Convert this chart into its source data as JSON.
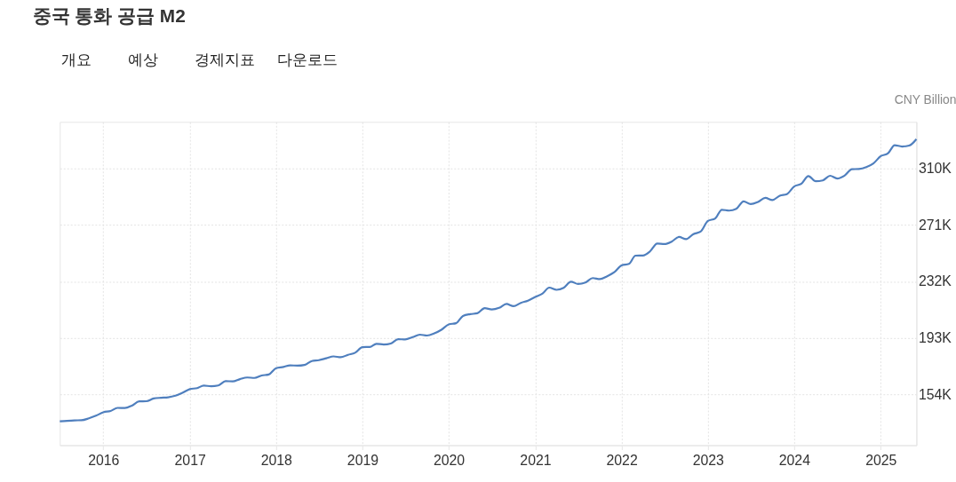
{
  "chart_data": {
    "type": "line",
    "title": "중국 통화 공급 M2",
    "ylabel": "CNY Billion",
    "annotations": [
      "개요",
      "예상",
      "경제지표",
      "다운로드"
    ],
    "x": [
      "2015-07",
      "2015-08",
      "2015-09",
      "2015-10",
      "2015-11",
      "2015-12",
      "2016-01",
      "2016-02",
      "2016-03",
      "2016-04",
      "2016-05",
      "2016-06",
      "2016-07",
      "2016-08",
      "2016-09",
      "2016-10",
      "2016-11",
      "2016-12",
      "2017-01",
      "2017-02",
      "2017-03",
      "2017-04",
      "2017-05",
      "2017-06",
      "2017-07",
      "2017-08",
      "2017-09",
      "2017-10",
      "2017-11",
      "2017-12",
      "2018-01",
      "2018-02",
      "2018-03",
      "2018-04",
      "2018-05",
      "2018-06",
      "2018-07",
      "2018-08",
      "2018-09",
      "2018-10",
      "2018-11",
      "2018-12",
      "2019-01",
      "2019-02",
      "2019-03",
      "2019-04",
      "2019-05",
      "2019-06",
      "2019-07",
      "2019-08",
      "2019-09",
      "2019-10",
      "2019-11",
      "2019-12",
      "2020-01",
      "2020-02",
      "2020-03",
      "2020-04",
      "2020-05",
      "2020-06",
      "2020-07",
      "2020-08",
      "2020-09",
      "2020-10",
      "2020-11",
      "2020-12",
      "2021-01",
      "2021-02",
      "2021-03",
      "2021-04",
      "2021-05",
      "2021-06",
      "2021-07",
      "2021-08",
      "2021-09",
      "2021-10",
      "2021-11",
      "2021-12",
      "2022-01",
      "2022-02",
      "2022-03",
      "2022-04",
      "2022-05",
      "2022-06",
      "2022-07",
      "2022-08",
      "2022-09",
      "2022-10",
      "2022-11",
      "2022-12",
      "2023-01",
      "2023-02",
      "2023-03",
      "2023-04",
      "2023-05",
      "2023-06",
      "2023-07",
      "2023-08",
      "2023-09",
      "2023-10",
      "2023-11",
      "2023-12",
      "2024-01",
      "2024-02",
      "2024-03",
      "2024-04",
      "2024-05",
      "2024-06",
      "2024-07",
      "2024-08",
      "2024-09",
      "2024-10",
      "2024-11",
      "2024-12",
      "2025-01",
      "2025-02",
      "2025-03",
      "2025-04",
      "2025-05",
      "2025-06"
    ],
    "series": [
      {
        "color": "#4f7fbe",
        "values": [
          135300,
          135700,
          136000,
          136100,
          137400,
          139200,
          141600,
          142500,
          144600,
          144500,
          146200,
          149100,
          149200,
          151100,
          151600,
          151900,
          153000,
          155000,
          157600,
          158300,
          160000,
          159600,
          160100,
          163100,
          162900,
          164500,
          165600,
          165300,
          167000,
          167700,
          172100,
          172900,
          174000,
          173800,
          174300,
          177000,
          177600,
          178900,
          180200,
          179600,
          181300,
          182700,
          186600,
          186700,
          188900,
          188400,
          189100,
          192100,
          191900,
          193500,
          195200,
          194600,
          196100,
          198600,
          202300,
          203100,
          208100,
          209400,
          210000,
          213500,
          212600,
          213700,
          216400,
          214900,
          217200,
          218700,
          221300,
          223600,
          227700,
          226200,
          227600,
          231800,
          230200,
          231200,
          234300,
          233600,
          235600,
          238300,
          243100,
          244100,
          249800,
          249900,
          252700,
          258100,
          257800,
          259500,
          262700,
          261200,
          264700,
          266400,
          273800,
          275500,
          281500,
          280900,
          282100,
          287300,
          285400,
          286900,
          289700,
          288200,
          291200,
          292300,
          297600,
          299600,
          304800,
          301200,
          301800,
          305000,
          303100,
          305100,
          309500,
          309700,
          311000,
          313500,
          318500,
          320500,
          326100,
          325200,
          325800,
          330300
        ]
      }
    ],
    "xlim": [
      "2015-07",
      "2025-06"
    ],
    "xticks": [
      {
        "value": "2016-01",
        "label": "2016"
      },
      {
        "value": "2017-01",
        "label": "2017"
      },
      {
        "value": "2018-01",
        "label": "2018"
      },
      {
        "value": "2019-01",
        "label": "2019"
      },
      {
        "value": "2020-01",
        "label": "2020"
      },
      {
        "value": "2021-01",
        "label": "2021"
      },
      {
        "value": "2022-01",
        "label": "2022"
      },
      {
        "value": "2023-01",
        "label": "2023"
      },
      {
        "value": "2024-01",
        "label": "2024"
      },
      {
        "value": "2025-01",
        "label": "2025"
      }
    ],
    "ylim": [
      118800,
      342200
    ],
    "yticks": [
      {
        "value": 154000,
        "label": "154K"
      },
      {
        "value": 193000,
        "label": "193K"
      },
      {
        "value": 232000,
        "label": "232K"
      },
      {
        "value": 271000,
        "label": "271K"
      },
      {
        "value": 310000,
        "label": "310K"
      }
    ],
    "grid": true,
    "marker": "none",
    "line_style": "solid"
  }
}
